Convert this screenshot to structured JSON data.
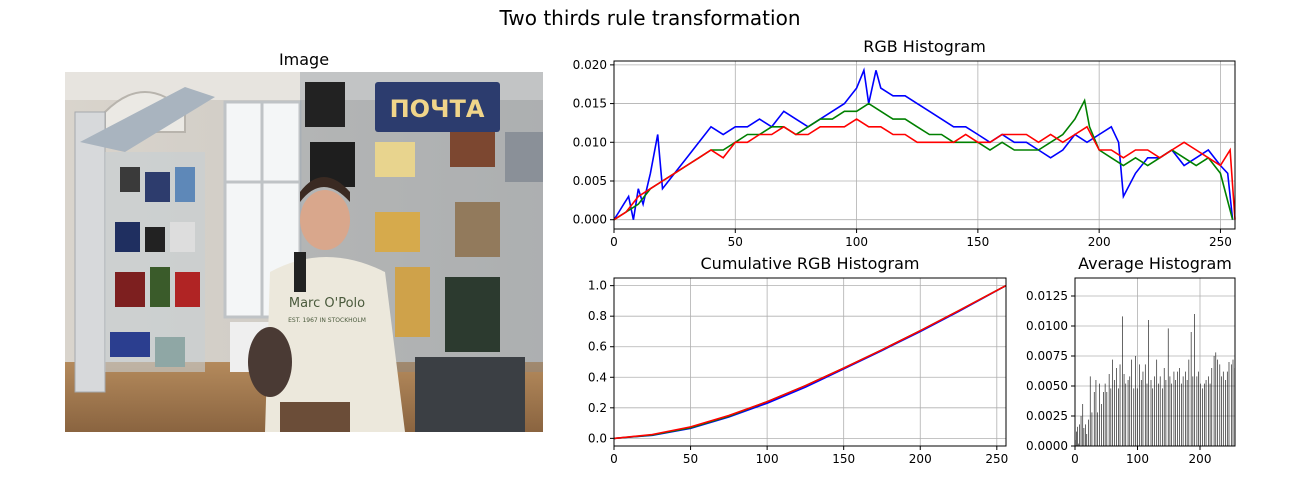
{
  "figure": {
    "suptitle": "Two thirds rule transformation"
  },
  "image_panel": {
    "title": "Image",
    "wall_sign_text": "ПОЧТА",
    "sweater_text_line1": "Marc O'Polo",
    "sweater_text_line2": "EST. 1967 IN STOCKHOLM"
  },
  "chart_data": [
    {
      "type": "line",
      "title": "RGB Histogram",
      "xlim": [
        0,
        256
      ],
      "ylim": [
        -0.0012,
        0.0205
      ],
      "xticks": [
        0,
        50,
        100,
        150,
        200,
        250
      ],
      "yticks": [
        0.0,
        0.005,
        0.01,
        0.015,
        0.02
      ],
      "ytick_labels": [
        "0.000",
        "0.005",
        "0.010",
        "0.015",
        "0.020"
      ],
      "grid": true,
      "series": [
        {
          "color": "#0000ff",
          "points": [
            [
              0,
              0
            ],
            [
              2,
              0.001
            ],
            [
              4,
              0.002
            ],
            [
              6,
              0.003
            ],
            [
              8,
              0
            ],
            [
              10,
              0.004
            ],
            [
              12,
              0.002
            ],
            [
              15,
              0.006
            ],
            [
              18,
              0.011
            ],
            [
              20,
              0.004
            ],
            [
              25,
              0.006
            ],
            [
              30,
              0.008
            ],
            [
              35,
              0.01
            ],
            [
              40,
              0.012
            ],
            [
              45,
              0.011
            ],
            [
              50,
              0.012
            ],
            [
              55,
              0.012
            ],
            [
              60,
              0.013
            ],
            [
              65,
              0.012
            ],
            [
              70,
              0.014
            ],
            [
              75,
              0.013
            ],
            [
              80,
              0.012
            ],
            [
              85,
              0.013
            ],
            [
              90,
              0.014
            ],
            [
              95,
              0.015
            ],
            [
              100,
              0.017
            ],
            [
              103,
              0.0193
            ],
            [
              105,
              0.015
            ],
            [
              108,
              0.0193
            ],
            [
              110,
              0.017
            ],
            [
              115,
              0.016
            ],
            [
              120,
              0.016
            ],
            [
              125,
              0.015
            ],
            [
              130,
              0.014
            ],
            [
              135,
              0.013
            ],
            [
              140,
              0.012
            ],
            [
              145,
              0.012
            ],
            [
              150,
              0.011
            ],
            [
              155,
              0.01
            ],
            [
              160,
              0.011
            ],
            [
              165,
              0.01
            ],
            [
              170,
              0.01
            ],
            [
              175,
              0.009
            ],
            [
              180,
              0.008
            ],
            [
              185,
              0.009
            ],
            [
              190,
              0.011
            ],
            [
              195,
              0.01
            ],
            [
              200,
              0.011
            ],
            [
              205,
              0.012
            ],
            [
              208,
              0.01
            ],
            [
              210,
              0.003
            ],
            [
              215,
              0.006
            ],
            [
              220,
              0.008
            ],
            [
              225,
              0.008
            ],
            [
              230,
              0.009
            ],
            [
              235,
              0.007
            ],
            [
              240,
              0.008
            ],
            [
              245,
              0.009
            ],
            [
              250,
              0.007
            ],
            [
              253,
              0.006
            ],
            [
              255,
              0
            ]
          ]
        },
        {
          "color": "#008000",
          "points": [
            [
              0,
              0
            ],
            [
              5,
              0.001
            ],
            [
              10,
              0.002
            ],
            [
              15,
              0.004
            ],
            [
              20,
              0.005
            ],
            [
              25,
              0.006
            ],
            [
              30,
              0.007
            ],
            [
              35,
              0.008
            ],
            [
              40,
              0.009
            ],
            [
              45,
              0.009
            ],
            [
              50,
              0.01
            ],
            [
              55,
              0.011
            ],
            [
              60,
              0.011
            ],
            [
              65,
              0.012
            ],
            [
              70,
              0.012
            ],
            [
              75,
              0.011
            ],
            [
              80,
              0.012
            ],
            [
              85,
              0.013
            ],
            [
              90,
              0.013
            ],
            [
              95,
              0.014
            ],
            [
              100,
              0.014
            ],
            [
              105,
              0.015
            ],
            [
              110,
              0.014
            ],
            [
              115,
              0.013
            ],
            [
              120,
              0.013
            ],
            [
              125,
              0.012
            ],
            [
              130,
              0.011
            ],
            [
              135,
              0.011
            ],
            [
              140,
              0.01
            ],
            [
              145,
              0.01
            ],
            [
              150,
              0.01
            ],
            [
              155,
              0.009
            ],
            [
              160,
              0.01
            ],
            [
              165,
              0.009
            ],
            [
              170,
              0.009
            ],
            [
              175,
              0.009
            ],
            [
              180,
              0.01
            ],
            [
              185,
              0.011
            ],
            [
              190,
              0.013
            ],
            [
              194,
              0.0154
            ],
            [
              196,
              0.012
            ],
            [
              200,
              0.009
            ],
            [
              205,
              0.008
            ],
            [
              210,
              0.007
            ],
            [
              215,
              0.008
            ],
            [
              220,
              0.007
            ],
            [
              225,
              0.008
            ],
            [
              230,
              0.009
            ],
            [
              235,
              0.008
            ],
            [
              240,
              0.007
            ],
            [
              245,
              0.008
            ],
            [
              250,
              0.006
            ],
            [
              255,
              0
            ]
          ]
        },
        {
          "color": "#ff0000",
          "points": [
            [
              0,
              0
            ],
            [
              5,
              0.001
            ],
            [
              10,
              0.003
            ],
            [
              15,
              0.004
            ],
            [
              20,
              0.005
            ],
            [
              25,
              0.006
            ],
            [
              30,
              0.007
            ],
            [
              35,
              0.008
            ],
            [
              40,
              0.009
            ],
            [
              45,
              0.008
            ],
            [
              50,
              0.01
            ],
            [
              55,
              0.01
            ],
            [
              60,
              0.011
            ],
            [
              65,
              0.011
            ],
            [
              70,
              0.012
            ],
            [
              75,
              0.011
            ],
            [
              80,
              0.011
            ],
            [
              85,
              0.012
            ],
            [
              90,
              0.012
            ],
            [
              95,
              0.012
            ],
            [
              100,
              0.013
            ],
            [
              105,
              0.012
            ],
            [
              110,
              0.012
            ],
            [
              115,
              0.011
            ],
            [
              120,
              0.011
            ],
            [
              125,
              0.01
            ],
            [
              130,
              0.01
            ],
            [
              135,
              0.01
            ],
            [
              140,
              0.01
            ],
            [
              145,
              0.011
            ],
            [
              150,
              0.01
            ],
            [
              155,
              0.01
            ],
            [
              160,
              0.011
            ],
            [
              165,
              0.011
            ],
            [
              170,
              0.011
            ],
            [
              175,
              0.01
            ],
            [
              180,
              0.011
            ],
            [
              185,
              0.01
            ],
            [
              190,
              0.011
            ],
            [
              195,
              0.012
            ],
            [
              200,
              0.009
            ],
            [
              205,
              0.009
            ],
            [
              210,
              0.008
            ],
            [
              215,
              0.009
            ],
            [
              220,
              0.009
            ],
            [
              225,
              0.008
            ],
            [
              230,
              0.009
            ],
            [
              235,
              0.01
            ],
            [
              240,
              0.009
            ],
            [
              245,
              0.008
            ],
            [
              250,
              0.007
            ],
            [
              254,
              0.009
            ],
            [
              256,
              0
            ]
          ]
        }
      ]
    },
    {
      "type": "line",
      "title": "Cumulative RGB Histogram",
      "xlim": [
        0,
        256
      ],
      "ylim": [
        -0.05,
        1.05
      ],
      "xticks": [
        0,
        50,
        100,
        150,
        200,
        250
      ],
      "yticks": [
        0.0,
        0.2,
        0.4,
        0.6,
        0.8,
        1.0
      ],
      "ytick_labels": [
        "0.0",
        "0.2",
        "0.4",
        "0.6",
        "0.8",
        "1.0"
      ],
      "grid": true,
      "series": [
        {
          "color": "#0000ff",
          "points": [
            [
              0,
              0
            ],
            [
              25,
              0.02
            ],
            [
              50,
              0.065
            ],
            [
              75,
              0.14
            ],
            [
              100,
              0.23
            ],
            [
              125,
              0.335
            ],
            [
              150,
              0.455
            ],
            [
              175,
              0.575
            ],
            [
              200,
              0.7
            ],
            [
              225,
              0.83
            ],
            [
              256,
              1.0
            ]
          ]
        },
        {
          "color": "#008000",
          "points": [
            [
              0,
              0
            ],
            [
              25,
              0.022
            ],
            [
              50,
              0.07
            ],
            [
              75,
              0.145
            ],
            [
              100,
              0.24
            ],
            [
              125,
              0.345
            ],
            [
              150,
              0.46
            ],
            [
              175,
              0.58
            ],
            [
              200,
              0.705
            ],
            [
              225,
              0.835
            ],
            [
              256,
              1.0
            ]
          ]
        },
        {
          "color": "#ff0000",
          "points": [
            [
              0,
              0
            ],
            [
              25,
              0.025
            ],
            [
              50,
              0.075
            ],
            [
              75,
              0.15
            ],
            [
              100,
              0.24
            ],
            [
              125,
              0.345
            ],
            [
              150,
              0.46
            ],
            [
              175,
              0.58
            ],
            [
              200,
              0.705
            ],
            [
              225,
              0.835
            ],
            [
              256,
              1.0
            ]
          ]
        }
      ]
    },
    {
      "type": "bar",
      "title": "Average Histogram",
      "xlim": [
        0,
        256
      ],
      "ylim": [
        0,
        0.014
      ],
      "xticks": [
        0,
        100,
        200
      ],
      "yticks": [
        0.0,
        0.0025,
        0.005,
        0.0075,
        0.01,
        0.0125
      ],
      "ytick_labels": [
        "0.0000",
        "0.0025",
        "0.0050",
        "0.0075",
        "0.0100",
        "0.0125"
      ],
      "grid": true,
      "bar_color": "#000000",
      "values": [
        0.0005,
        0.0,
        0.0012,
        0.0,
        0.0016,
        0.0,
        0.0002,
        0.0018,
        0.0,
        0.0,
        0.0025,
        0.0,
        0.0,
        0.0035,
        0.0,
        0.0015,
        0.0,
        0.0,
        0.0018,
        0.0,
        0.001,
        0.0,
        0.0,
        0.0022,
        0.0,
        0.0,
        0.0058,
        0.0,
        0.0,
        0.0028,
        0.0,
        0.0,
        0.0,
        0.0045,
        0.0,
        0.0,
        0.0055,
        0.0,
        0.0,
        0.0028,
        0.0,
        0.0,
        0.0052,
        0.0,
        0.0,
        0.0,
        0.0035,
        0.0,
        0.0,
        0.0045,
        0.0,
        0.0,
        0.0052,
        0.0,
        0.0,
        0.0045,
        0.0,
        0.0,
        0.0,
        0.006,
        0.0,
        0.0,
        0.0048,
        0.0,
        0.0,
        0.0072,
        0.0,
        0.0,
        0.0055,
        0.0,
        0.0,
        0.0,
        0.0065,
        0.0,
        0.0,
        0.0048,
        0.0,
        0.0,
        0.0068,
        0.0,
        0.0,
        0.0,
        0.0108,
        0.0,
        0.0,
        0.006,
        0.0,
        0.0,
        0.0052,
        0.0,
        0.0,
        0.0,
        0.0055,
        0.0,
        0.0,
        0.0058,
        0.0,
        0.0,
        0.0072,
        0.0,
        0.0,
        0.0,
        0.0048,
        0.0,
        0.0,
        0.0075,
        0.0,
        0.0,
        0.0048,
        0.0,
        0.0,
        0.0,
        0.0068,
        0.0,
        0.0,
        0.0055,
        0.0,
        0.0,
        0.0062,
        0.0,
        0.0,
        0.0,
        0.0068,
        0.0,
        0.0,
        0.0052,
        0.0,
        0.0,
        0.0105,
        0.0,
        0.0,
        0.0,
        0.0055,
        0.0,
        0.0,
        0.0048,
        0.0,
        0.0,
        0.0058,
        0.0,
        0.0,
        0.0,
        0.0072,
        0.0,
        0.0,
        0.0052,
        0.0,
        0.0,
        0.0058,
        0.0,
        0.0,
        0.0,
        0.0048,
        0.0,
        0.0,
        0.0065,
        0.0,
        0.0,
        0.0055,
        0.0,
        0.0,
        0.0,
        0.0098,
        0.0,
        0.0,
        0.0058,
        0.0,
        0.0,
        0.0052,
        0.0,
        0.0,
        0.0,
        0.0062,
        0.0,
        0.0,
        0.0055,
        0.0,
        0.0,
        0.0062,
        0.0,
        0.0,
        0.0,
        0.0065,
        0.0,
        0.0,
        0.0052,
        0.0,
        0.0,
        0.0058,
        0.0,
        0.0,
        0.0,
        0.0062,
        0.0,
        0.0,
        0.0055,
        0.0,
        0.0,
        0.0072,
        0.0,
        0.0,
        0.0,
        0.0095,
        0.0,
        0.0,
        0.0058,
        0.0,
        0.0,
        0.011,
        0.0,
        0.0,
        0.0,
        0.0058,
        0.0,
        0.0,
        0.0062,
        0.0,
        0.0,
        0.0052,
        0.0,
        0.0,
        0.0,
        0.0048,
        0.0,
        0.0,
        0.0052,
        0.0,
        0.0,
        0.0055,
        0.0,
        0.0,
        0.0,
        0.0058,
        0.0,
        0.0,
        0.0052,
        0.0,
        0.0,
        0.0065,
        0.0,
        0.0,
        0.0,
        0.0075,
        0.0,
        0.0,
        0.0078,
        0.0,
        0.0,
        0.0072,
        0.0,
        0.0,
        0.0,
        0.0068,
        0.0,
        0.0,
        0.0058,
        0.0,
        0.0,
        0.0062,
        0.0,
        0.0,
        0.0,
        0.0055,
        0.0,
        0.0,
        0.0062,
        0.0,
        0.0,
        0.007,
        0.0,
        0.0,
        0.0,
        0.0068,
        0.0,
        0.0,
        0.0072,
        0.0,
        0.0,
        0.0065
      ]
    }
  ]
}
